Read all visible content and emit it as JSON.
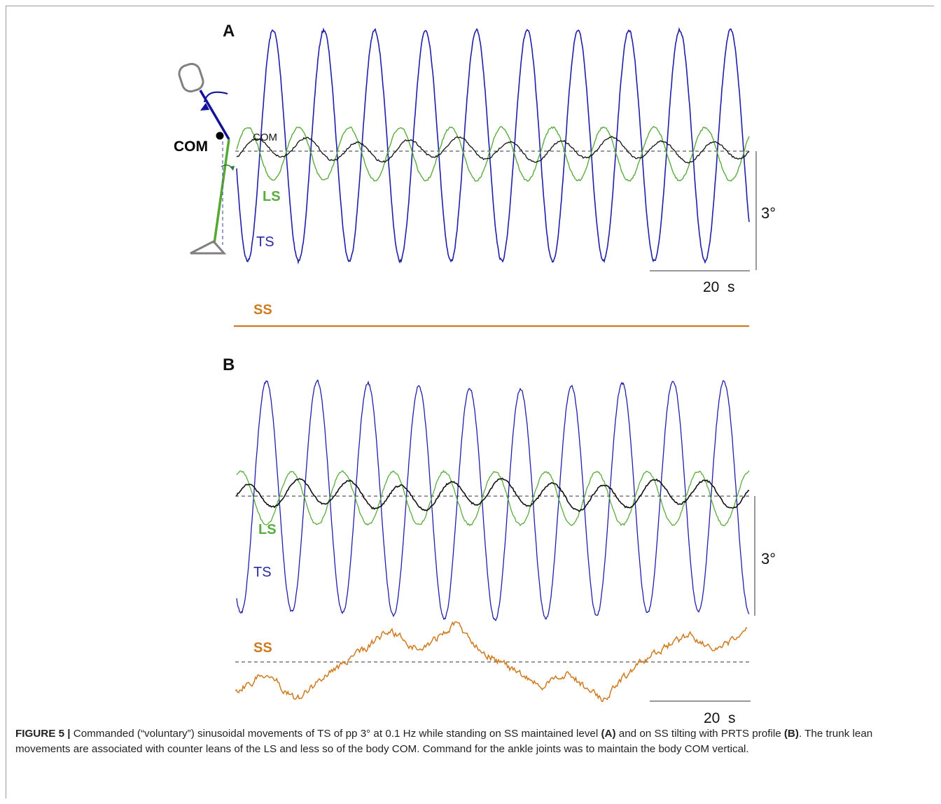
{
  "panels": [
    {
      "label": "A",
      "trace_labels": {
        "ts": "TS",
        "ls": "LS",
        "com": "COM",
        "ss": "SS"
      },
      "body_label": "COM",
      "scale_y": "3°",
      "scale_x": "20  s",
      "ss_level": "maintained level"
    },
    {
      "label": "B",
      "trace_labels": {
        "ts": "TS",
        "ls": "LS",
        "ss": "SS"
      },
      "scale_y": "3°",
      "scale_x": "20  s",
      "ss_level": "PRTS tilt"
    }
  ],
  "colors": {
    "ts": "#1f1fa8",
    "ls": "#5aac3c",
    "com": "#111111",
    "ss": "#cf7a1e",
    "ts_label": "#2a2aa0"
  },
  "caption": {
    "figure_label": "FIGURE 5 |",
    "t1": " Commanded (“voluntary”) sinusoidal movements of TS of pp 3° at 0.1 Hz while standing on SS maintained level ",
    "b1": "(A)",
    "t2": " and on SS tilting with PRTS profile ",
    "b2": "(B)",
    "t3": ". The trunk lean movements are associated with counter leans of the LS and less so of the body COM. Command for the ankle joints was to maintain the body COM vertical."
  }
}
